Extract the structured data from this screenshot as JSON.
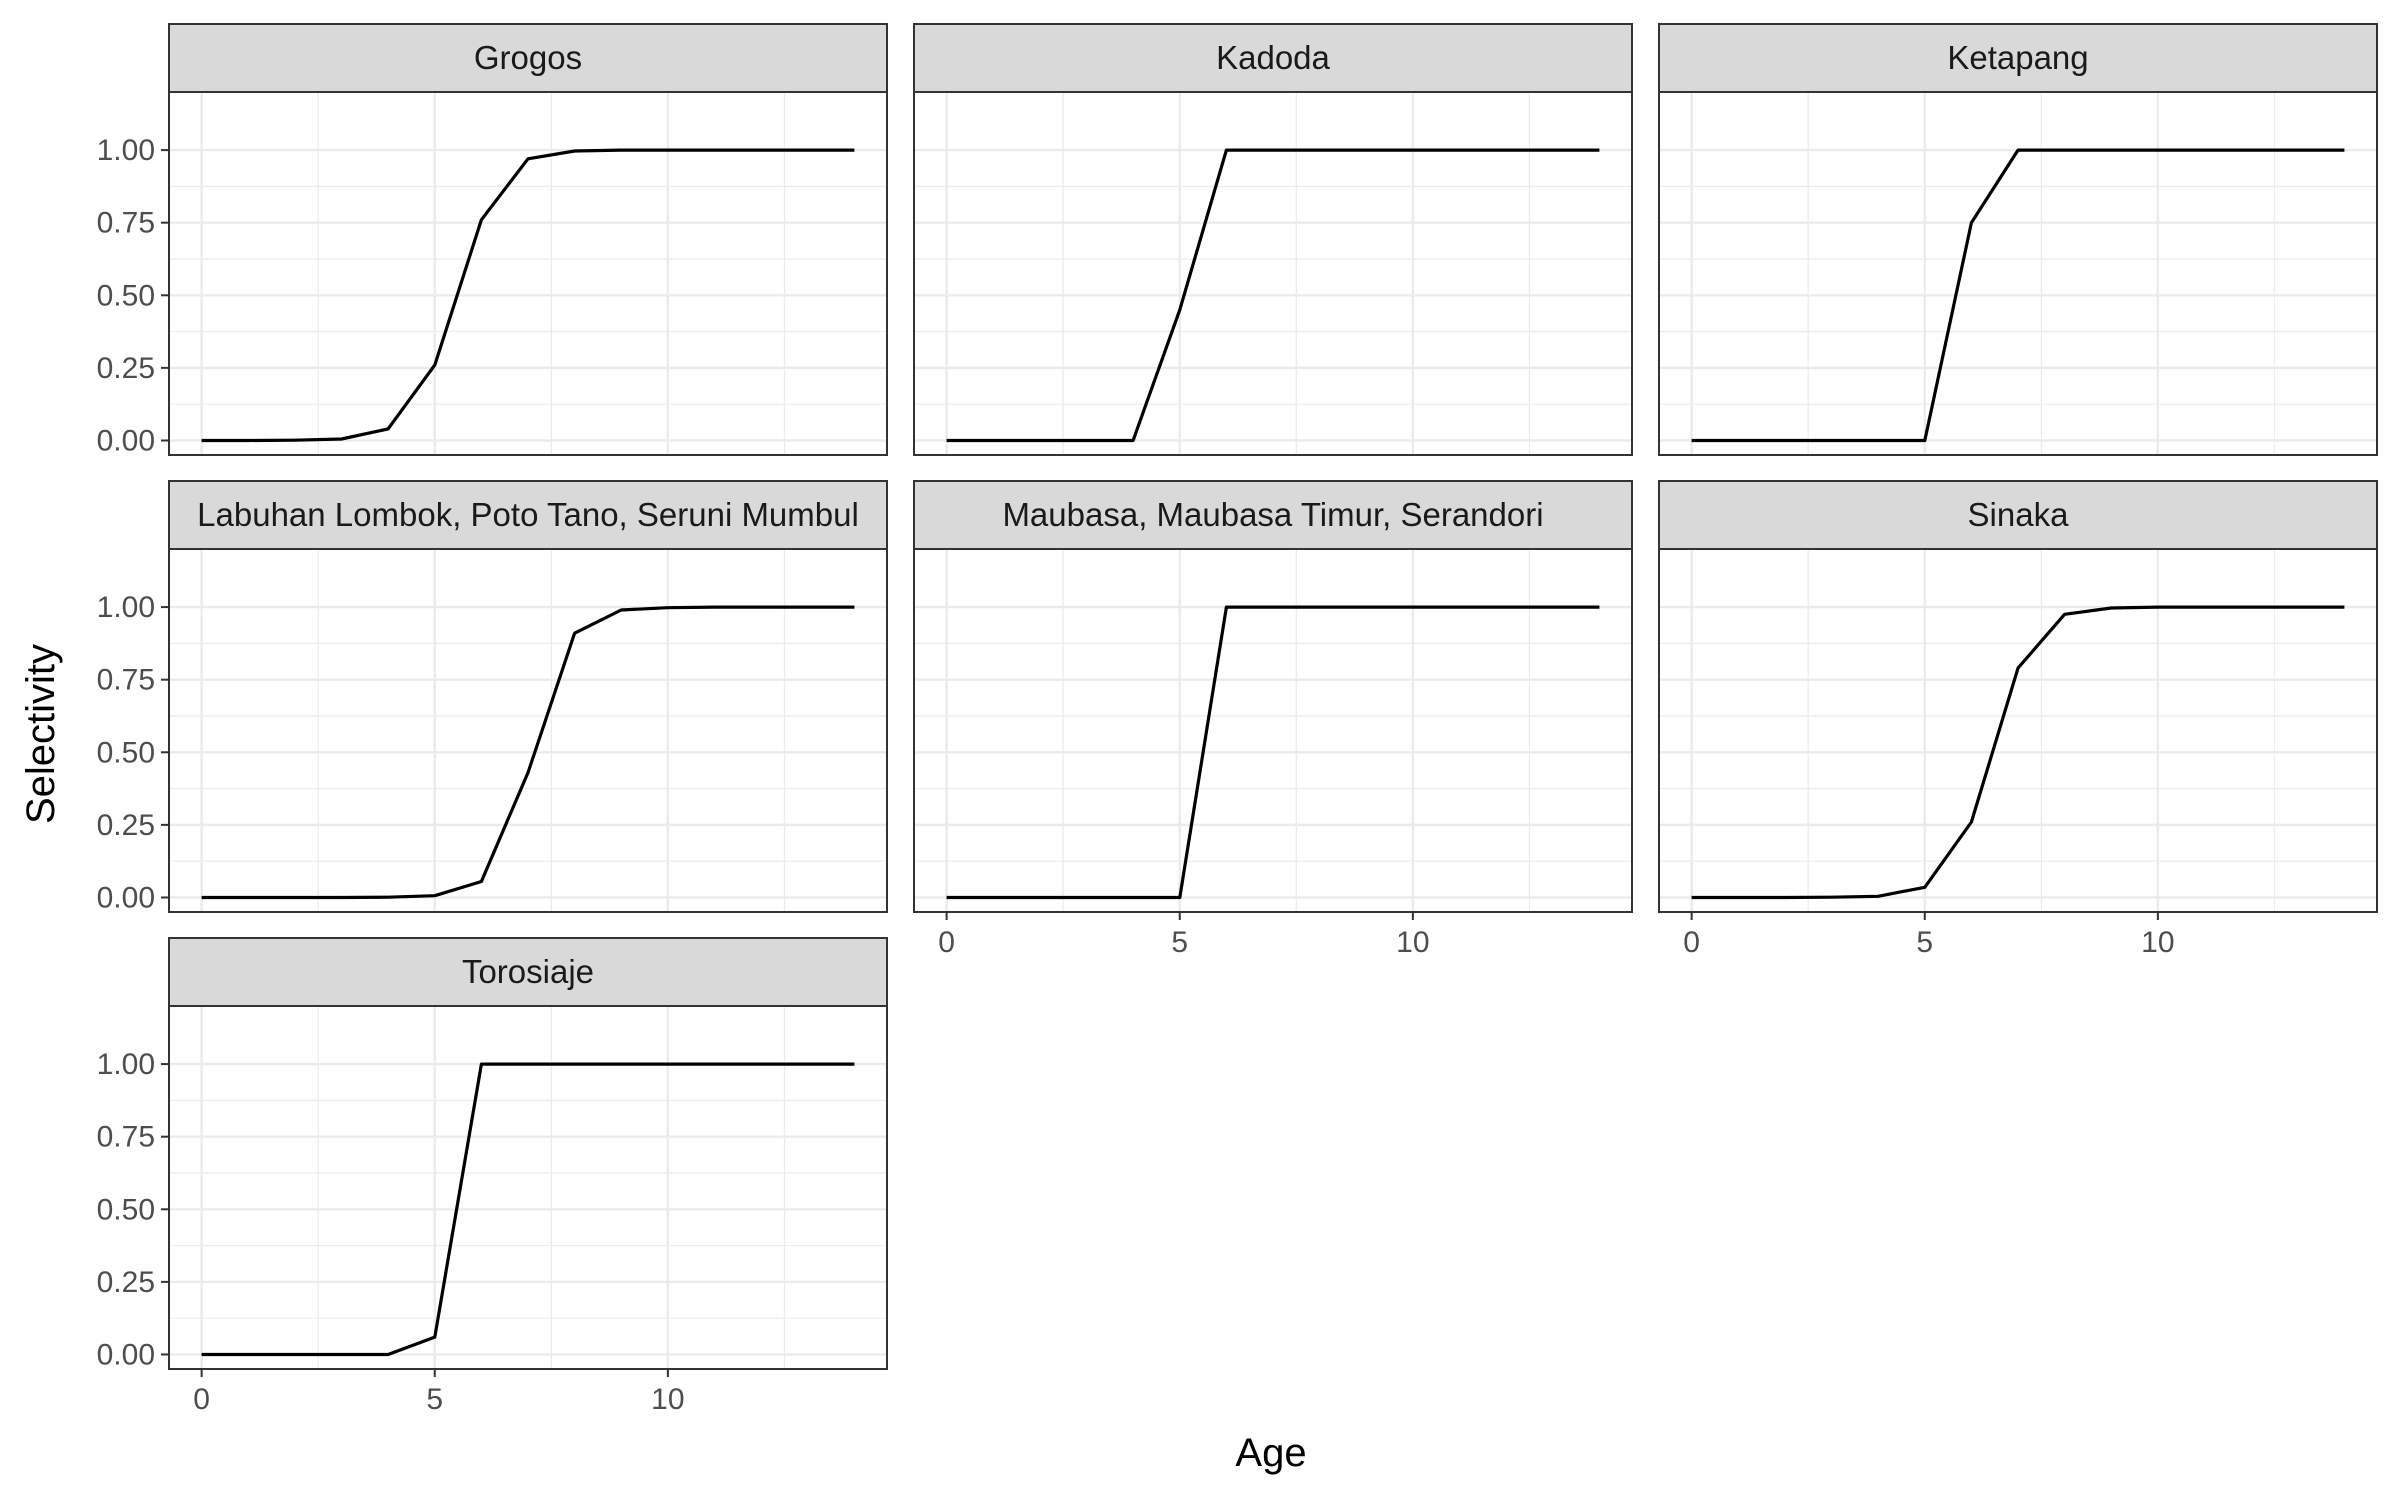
{
  "chart_data": {
    "type": "line",
    "layout": "facet_wrap",
    "xlabel": "Age",
    "ylabel": "Selectivity",
    "xlim": [
      -0.7,
      14.7
    ],
    "ylim": [
      -0.05,
      1.2
    ],
    "x_ticks": [
      0,
      5,
      10
    ],
    "y_ticks": [
      0,
      0.25,
      0.5,
      0.75,
      1.0
    ],
    "y_tick_labels": [
      "0.00",
      "0.25",
      "0.50",
      "0.75",
      "1.00"
    ],
    "grid": true,
    "line_color": "#000000",
    "strip_fill": "#d9d9d9",
    "panels": [
      {
        "title": "Grogos",
        "x": [
          0,
          1,
          2,
          3,
          4,
          5,
          6,
          7,
          8,
          9,
          10,
          11,
          12,
          13,
          14
        ],
        "y": [
          0,
          0,
          0.001,
          0.005,
          0.04,
          0.26,
          0.76,
          0.97,
          0.997,
          1,
          1,
          1,
          1,
          1,
          1
        ]
      },
      {
        "title": "Kadoda",
        "x": [
          0,
          1,
          2,
          3,
          4,
          5,
          6,
          7,
          8,
          9,
          10,
          11,
          12,
          13,
          14
        ],
        "y": [
          0,
          0,
          0,
          0,
          0,
          0.45,
          1,
          1,
          1,
          1,
          1,
          1,
          1,
          1,
          1
        ]
      },
      {
        "title": "Ketapang",
        "x": [
          0,
          1,
          2,
          3,
          4,
          5,
          6,
          7,
          8,
          9,
          10,
          11,
          12,
          13,
          14
        ],
        "y": [
          0,
          0,
          0,
          0,
          0,
          0,
          0.75,
          1,
          1,
          1,
          1,
          1,
          1,
          1,
          1
        ]
      },
      {
        "title": "Labuhan Lombok, Poto Tano, Seruni Mumbul",
        "x": [
          0,
          1,
          2,
          3,
          4,
          5,
          6,
          7,
          8,
          9,
          10,
          11,
          12,
          13,
          14
        ],
        "y": [
          0,
          0,
          0,
          0,
          0.001,
          0.006,
          0.055,
          0.43,
          0.91,
          0.99,
          0.998,
          1,
          1,
          1,
          1
        ]
      },
      {
        "title": "Maubasa, Maubasa Timur, Serandori",
        "x": [
          0,
          1,
          2,
          3,
          4,
          5,
          6,
          7,
          8,
          9,
          10,
          11,
          12,
          13,
          14
        ],
        "y": [
          0,
          0,
          0,
          0,
          0,
          0,
          1,
          1,
          1,
          1,
          1,
          1,
          1,
          1,
          1
        ]
      },
      {
        "title": "Sinaka",
        "x": [
          0,
          1,
          2,
          3,
          4,
          5,
          6,
          7,
          8,
          9,
          10,
          11,
          12,
          13,
          14
        ],
        "y": [
          0,
          0,
          0,
          0.001,
          0.004,
          0.035,
          0.26,
          0.79,
          0.975,
          0.997,
          1,
          1,
          1,
          1,
          1
        ]
      },
      {
        "title": "Torosiaje",
        "x": [
          0,
          1,
          2,
          3,
          4,
          5,
          6,
          7,
          8,
          9,
          10,
          11,
          12,
          13,
          14
        ],
        "y": [
          0,
          0,
          0,
          0,
          0,
          0.06,
          1,
          1,
          1,
          1,
          1,
          1,
          1,
          1,
          1
        ]
      }
    ]
  }
}
